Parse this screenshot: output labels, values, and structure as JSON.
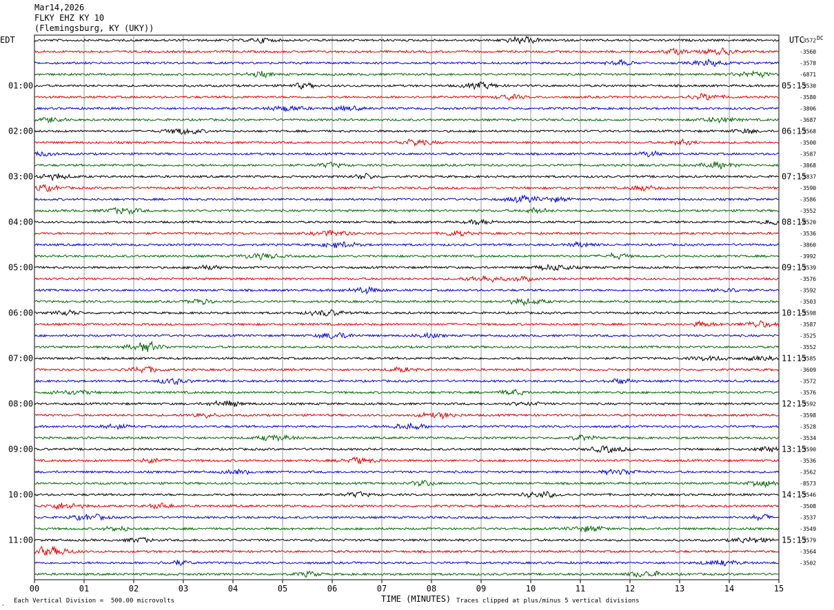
{
  "header": {
    "date": "Mar14,2026",
    "station": "FLKY EHZ KY 10",
    "location": "(Flemingsburg, KY (UKY))"
  },
  "left_zone": "EDT",
  "right_zone": "UTC",
  "footer": {
    "scale_note": "Each Vertical Division =  500.00 microvolts",
    "clip_note": "Traces clipped at plus/minus 5 vertical divisions",
    "xlabel": "TIME (MINUTES)",
    "corner_mark": "¸"
  },
  "colors": {
    "black": "#000000",
    "red": "#e00000",
    "blue": "#0000d0",
    "green": "#006400",
    "grid": "#808080"
  },
  "chart_data": {
    "type": "line",
    "title": "FLKY EHZ KY 10",
    "xlabel": "TIME (MINUTES)",
    "xlim": [
      0,
      15
    ],
    "x_ticks": [
      "00",
      "01",
      "02",
      "03",
      "04",
      "05",
      "06",
      "07",
      "08",
      "09",
      "10",
      "11",
      "12",
      "13",
      "14",
      "15"
    ],
    "left_hour_labels": [
      "01:00",
      "02:00",
      "03:00",
      "04:00",
      "05:00",
      "06:00",
      "07:00",
      "08:00",
      "09:00",
      "10:00",
      "11:00"
    ],
    "right_hour_labels": [
      "05:15",
      "06:15",
      "07:15",
      "08:15",
      "09:15",
      "10:15",
      "11:15",
      "12:15",
      "13:15",
      "14:15",
      "15:15"
    ],
    "hour_label_first_row": 4,
    "hour_label_every": 4,
    "right_corner_label": "DC",
    "trace_colors": [
      "black",
      "red",
      "blue",
      "green"
    ],
    "offsets": [
      "-3572",
      "-3560",
      "-3578",
      "-6871",
      "-3530",
      "-3580",
      "-3806",
      "-3687",
      "-3568",
      "-3500",
      "-3587",
      "-3868",
      "-3837",
      "-3590",
      "-3586",
      "-3552",
      "-8520",
      "-3536",
      "-3860",
      "-3992",
      "-3539",
      "-3576",
      "-3592",
      "-3503",
      "-3598",
      "-3587",
      "-3525",
      "-3552",
      "-3585",
      "-3609",
      "-3572",
      "-3576",
      "-3592",
      "-3598",
      "-3528",
      "-3534",
      "-3590",
      "-3536",
      "-3562",
      "-8573",
      "-3546",
      "-3508",
      "-3537",
      "-3549",
      "-3579",
      "-3564",
      "-3502"
    ],
    "traces_per_hour": 4,
    "rows": 48
  }
}
